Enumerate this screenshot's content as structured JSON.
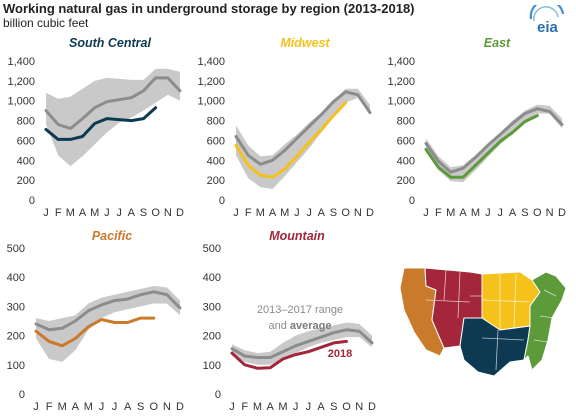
{
  "header": {
    "title": "Working natural gas in underground storage by region (2013-2018)",
    "subtitle": "billion cubic feet",
    "logo_text": "eia"
  },
  "annotations": {
    "range_label_1": "2013–2017 range",
    "range_label_and": "and",
    "range_label_avg": "average",
    "year_label": "2018"
  },
  "colors": {
    "range_fill": "#c9c9c9",
    "average_line": "#8c8c8c",
    "south_central": "#0d3a52",
    "midwest": "#f5c21b",
    "east": "#5c9a3a",
    "pacific": "#c97a2b",
    "mountain": "#a3263a"
  },
  "chart_data": [
    {
      "type": "line",
      "title": "South Central",
      "categories": [
        "J",
        "F",
        "M",
        "A",
        "M",
        "J",
        "J",
        "A",
        "S",
        "O",
        "N",
        "D"
      ],
      "ylim": [
        0,
        1400
      ],
      "yticks": [
        "0",
        "200",
        "400",
        "600",
        "800",
        "1,000",
        "1,200",
        "1,400"
      ],
      "range_min": [
        760,
        450,
        340,
        440,
        560,
        680,
        780,
        830,
        900,
        980,
        1060,
        1000
      ],
      "range_max": [
        1080,
        1020,
        1040,
        1120,
        1200,
        1230,
        1220,
        1210,
        1210,
        1320,
        1320,
        1290
      ],
      "average": [
        900,
        760,
        720,
        820,
        930,
        990,
        1010,
        1030,
        1100,
        1230,
        1230,
        1100
      ],
      "current": [
        710,
        610,
        610,
        640,
        770,
        820,
        810,
        800,
        820,
        930,
        null,
        null
      ],
      "color_key": "south_central"
    },
    {
      "type": "line",
      "title": "Midwest",
      "categories": [
        "J",
        "F",
        "M",
        "A",
        "M",
        "J",
        "J",
        "A",
        "S",
        "O",
        "N",
        "D"
      ],
      "ylim": [
        0,
        1400
      ],
      "yticks": [
        "0",
        "200",
        "400",
        "600",
        "800",
        "1,000",
        "1,200",
        "1,400"
      ],
      "range_min": [
        450,
        220,
        130,
        110,
        240,
        380,
        520,
        680,
        830,
        980,
        1030,
        870
      ],
      "range_max": [
        750,
        550,
        440,
        450,
        560,
        660,
        780,
        880,
        1000,
        1120,
        1120,
        960
      ],
      "average": [
        640,
        450,
        360,
        400,
        500,
        620,
        740,
        860,
        990,
        1090,
        1060,
        880
      ],
      "current": [
        550,
        350,
        250,
        230,
        310,
        440,
        580,
        710,
        850,
        980,
        null,
        null
      ],
      "color_key": "midwest"
    },
    {
      "type": "line",
      "title": "East",
      "categories": [
        "J",
        "F",
        "M",
        "A",
        "M",
        "J",
        "J",
        "A",
        "S",
        "O",
        "N",
        "D"
      ],
      "ylim": [
        0,
        1400
      ],
      "yticks": [
        "0",
        "200",
        "400",
        "600",
        "800",
        "1,000",
        "1,200",
        "1,400"
      ],
      "range_min": [
        480,
        300,
        190,
        180,
        300,
        430,
        560,
        670,
        800,
        870,
        870,
        720
      ],
      "range_max": [
        620,
        440,
        330,
        350,
        450,
        560,
        680,
        800,
        900,
        960,
        950,
        820
      ],
      "average": [
        570,
        390,
        280,
        320,
        430,
        550,
        660,
        770,
        870,
        920,
        890,
        760
      ],
      "current": [
        510,
        330,
        230,
        230,
        350,
        470,
        590,
        680,
        790,
        850,
        null,
        null
      ],
      "color_key": "east"
    },
    {
      "type": "line",
      "title": "Pacific",
      "categories": [
        "J",
        "F",
        "M",
        "A",
        "M",
        "J",
        "J",
        "A",
        "S",
        "O",
        "N",
        "D"
      ],
      "ylim": [
        0,
        500
      ],
      "yticks": [
        "0",
        "100",
        "200",
        "300",
        "400",
        "500"
      ],
      "range_min": [
        190,
        120,
        110,
        150,
        220,
        260,
        280,
        290,
        300,
        310,
        310,
        270
      ],
      "range_max": [
        260,
        250,
        260,
        270,
        310,
        330,
        340,
        350,
        360,
        370,
        365,
        320
      ],
      "average": [
        240,
        220,
        225,
        250,
        285,
        305,
        320,
        325,
        340,
        350,
        340,
        295
      ],
      "current": [
        215,
        180,
        165,
        190,
        230,
        255,
        245,
        245,
        260,
        260,
        null,
        null
      ],
      "color_key": "pacific"
    },
    {
      "type": "line",
      "title": "Mountain",
      "categories": [
        "J",
        "F",
        "M",
        "A",
        "M",
        "J",
        "J",
        "A",
        "S",
        "O",
        "N",
        "D"
      ],
      "ylim": [
        0,
        500
      ],
      "yticks": [
        "0",
        "100",
        "200",
        "300",
        "400",
        "500"
      ],
      "range_min": [
        140,
        110,
        100,
        100,
        120,
        140,
        160,
        175,
        185,
        195,
        195,
        160
      ],
      "range_max": [
        170,
        150,
        140,
        145,
        175,
        200,
        215,
        225,
        235,
        245,
        240,
        200
      ],
      "average": [
        155,
        130,
        125,
        125,
        145,
        165,
        180,
        195,
        210,
        220,
        215,
        175
      ],
      "current": [
        140,
        100,
        88,
        90,
        120,
        135,
        145,
        160,
        175,
        180,
        null,
        null
      ],
      "color_key": "mountain"
    }
  ],
  "map": {
    "regions": [
      {
        "name": "pacific",
        "color_key": "pacific"
      },
      {
        "name": "mountain",
        "color_key": "mountain"
      },
      {
        "name": "midwest",
        "color_key": "midwest"
      },
      {
        "name": "south_central",
        "color_key": "south_central"
      },
      {
        "name": "east",
        "color_key": "east"
      }
    ]
  }
}
